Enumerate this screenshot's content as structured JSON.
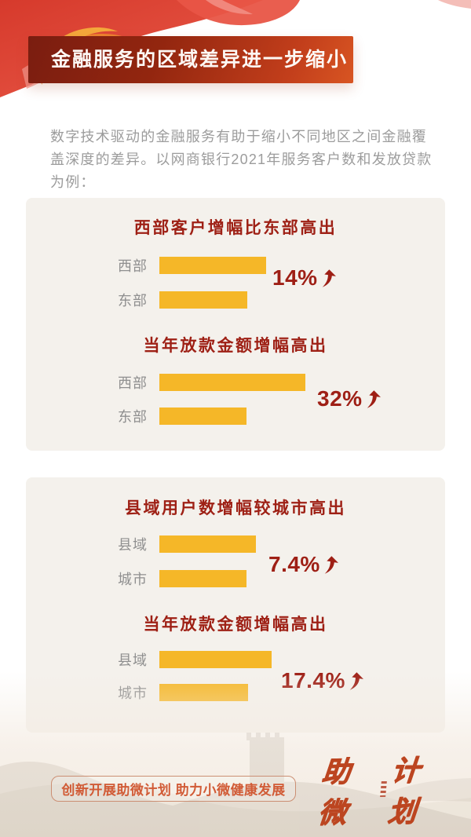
{
  "header": {
    "title": "金融服务的区域差异进一步缩小"
  },
  "intro": {
    "text": "数字技术驱动的金融服务有助于缩小不同地区之间金融覆盖深度的差异。以网商银行2021年服务客户数和发放贷款为例："
  },
  "chart_data": [
    {
      "type": "bar",
      "orientation": "horizontal",
      "title": "西部客户增幅比东部高出",
      "categories": [
        "西部",
        "东部"
      ],
      "values": [
        136,
        112
      ],
      "value_note": "relative bar lengths, no numeric axis shown",
      "difference_label": "14%",
      "arrow": "up",
      "bar_color": "#f5b728"
    },
    {
      "type": "bar",
      "orientation": "horizontal",
      "title": "当年放款金额增幅高出",
      "categories": [
        "西部",
        "东部"
      ],
      "values": [
        186,
        111
      ],
      "value_note": "relative bar lengths, no numeric axis shown",
      "difference_label": "32%",
      "arrow": "up",
      "bar_color": "#f5b728"
    },
    {
      "type": "bar",
      "orientation": "horizontal",
      "title": "县域用户数增幅较城市高出",
      "categories": [
        "县域",
        "城市"
      ],
      "values": [
        123,
        111
      ],
      "value_note": "relative bar lengths, no numeric axis shown",
      "difference_label": "7.4%",
      "arrow": "up",
      "bar_color": "#f5b728"
    },
    {
      "type": "bar",
      "orientation": "horizontal",
      "title": "当年放款金额增幅高出",
      "categories": [
        "县域",
        "城市"
      ],
      "values": [
        143,
        113
      ],
      "value_note": "relative bar lengths, no numeric axis shown",
      "difference_label": "17.4%",
      "arrow": "up",
      "bar_color": "#f5b728"
    }
  ],
  "footer": {
    "slogan": "创新开展助微计划 助力小微健康发展",
    "logo_part1": "助微",
    "logo_part2": "计划"
  },
  "colors": {
    "banner_gradient_start": "#7a1d10",
    "banner_gradient_end": "#d85522",
    "chart_title_red": "#9e2015",
    "bar_yellow": "#f5b728",
    "label_gray": "#8f8f8f",
    "intro_gray": "#9c9c9c",
    "card_bg": "#f4f1ec",
    "footer_text_orange": "#d15b36",
    "footer_border": "#cb8f74",
    "logo_red": "#bc4520"
  }
}
